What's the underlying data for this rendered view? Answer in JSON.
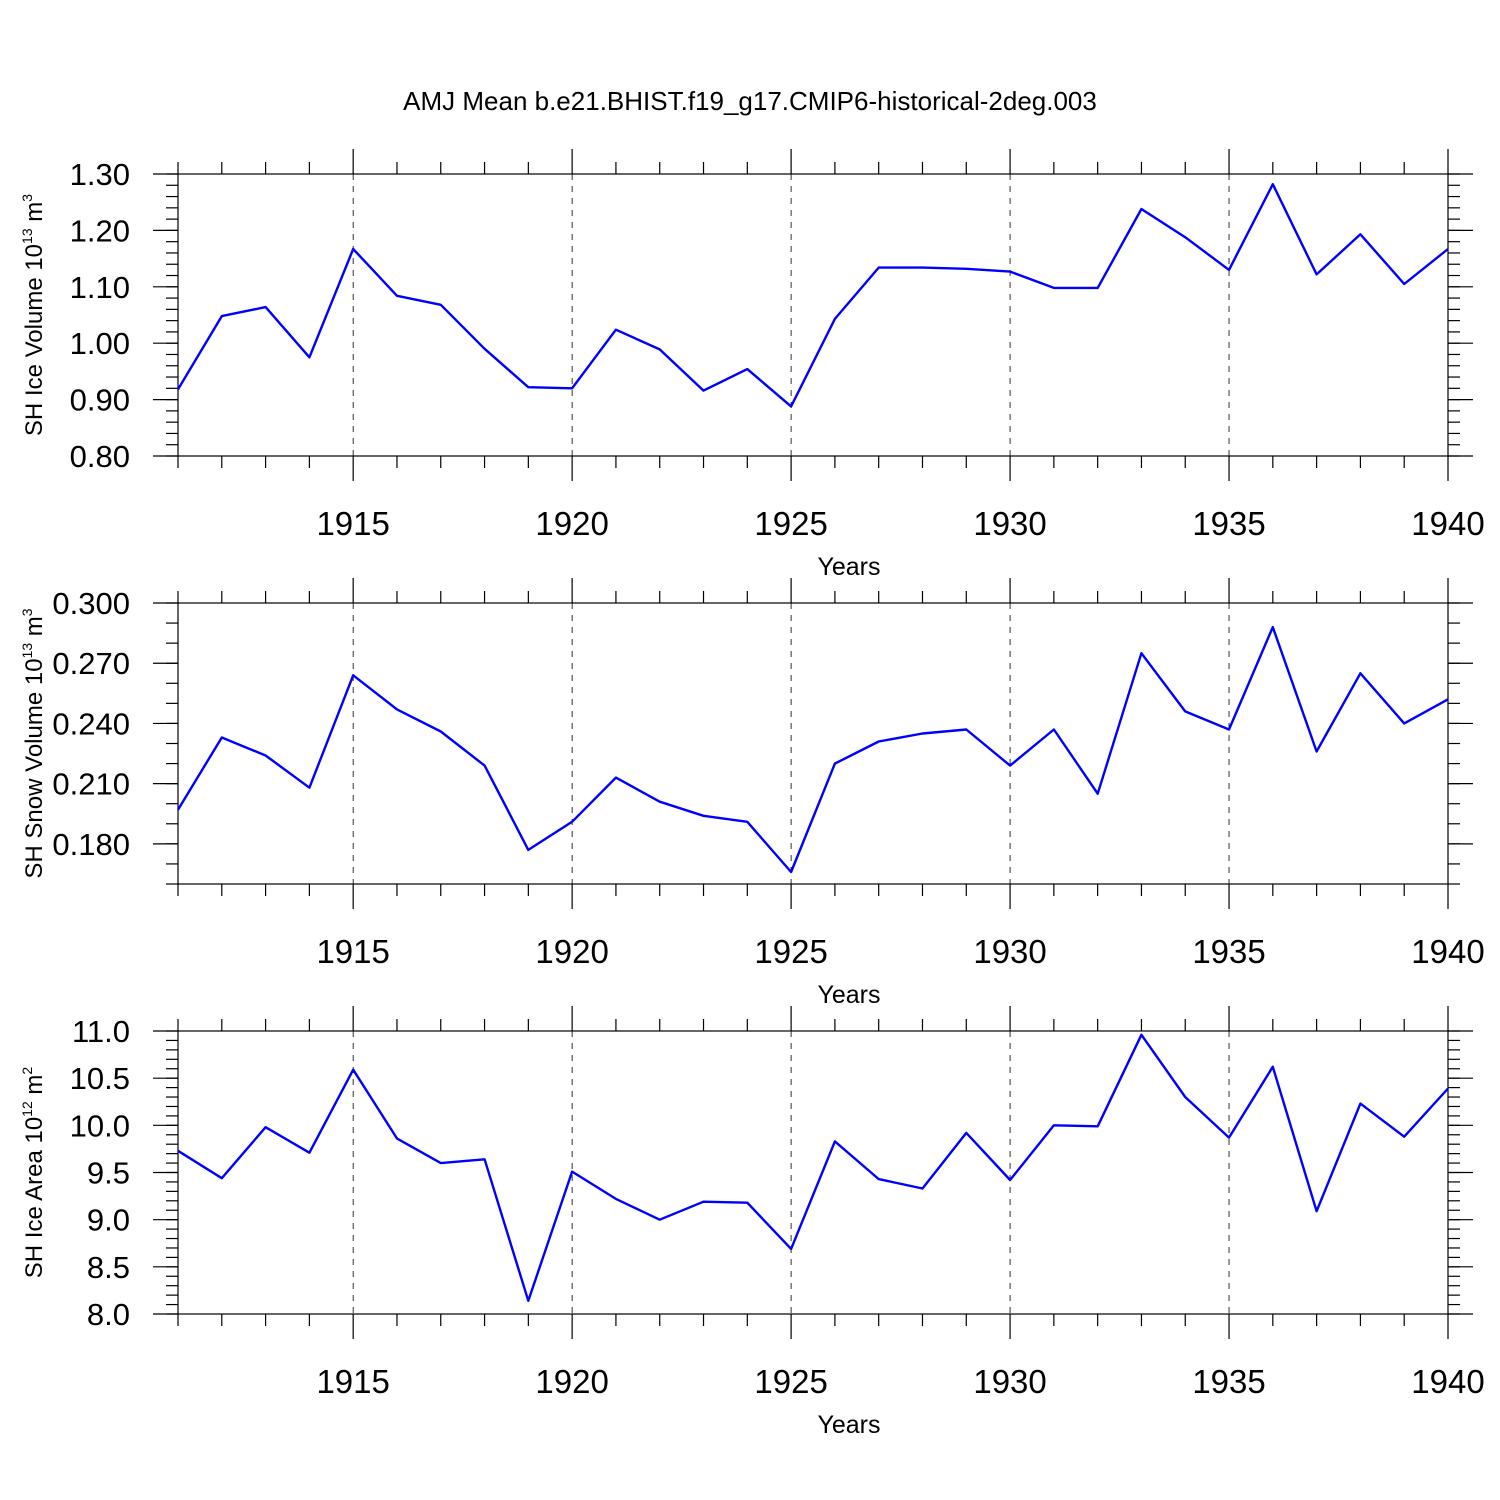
{
  "chart_data": [
    {
      "type": "line",
      "title": "AMJ Mean b.e21.BHIST.f19_g17.CMIP6-historical-2deg.003",
      "xlabel": "Years",
      "ylabel": "SH Ice Volume 10",
      "ylabel_exp": "13",
      "ylabel_unit": " m",
      "ylabel_unit_exp": "3",
      "xlim": [
        1911,
        1940
      ],
      "ylim": [
        0.8,
        1.3
      ],
      "x_ticks": [
        1915,
        1920,
        1925,
        1930,
        1935,
        1940
      ],
      "y_ticks": [
        "0.80",
        "0.90",
        "1.00",
        "1.10",
        "1.20",
        "1.30"
      ],
      "y_minor_step": 0.02,
      "grid": "x-dashed",
      "series": [
        {
          "name": "SH Ice Volume",
          "color": "#0000ff",
          "x": [
            1911,
            1912,
            1913,
            1914,
            1915,
            1916,
            1917,
            1918,
            1919,
            1920,
            1921,
            1922,
            1923,
            1924,
            1925,
            1926,
            1927,
            1928,
            1929,
            1930,
            1931,
            1932,
            1933,
            1934,
            1935,
            1936,
            1937,
            1938,
            1939,
            1940
          ],
          "values": [
            0.918,
            1.048,
            1.064,
            0.975,
            1.167,
            1.084,
            1.068,
            0.99,
            0.922,
            0.92,
            1.024,
            0.989,
            0.916,
            0.954,
            0.888,
            1.043,
            1.134,
            1.134,
            1.132,
            1.127,
            1.098,
            1.098,
            1.238,
            1.188,
            1.13,
            1.282,
            1.122,
            1.193,
            1.105,
            1.167
          ]
        }
      ]
    },
    {
      "type": "line",
      "xlabel": "Years",
      "ylabel": "SH Snow Volume 10",
      "ylabel_exp": "13",
      "ylabel_unit": " m",
      "ylabel_unit_exp": "3",
      "xlim": [
        1911,
        1940
      ],
      "ylim": [
        0.16,
        0.3
      ],
      "x_ticks": [
        1915,
        1920,
        1925,
        1930,
        1935,
        1940
      ],
      "y_ticks": [
        "0.180",
        "0.210",
        "0.240",
        "0.270",
        "0.300"
      ],
      "y_minor_step": 0.01,
      "grid": "x-dashed",
      "series": [
        {
          "name": "SH Snow Volume",
          "color": "#0000ff",
          "x": [
            1911,
            1912,
            1913,
            1914,
            1915,
            1916,
            1917,
            1918,
            1919,
            1920,
            1921,
            1922,
            1923,
            1924,
            1925,
            1926,
            1927,
            1928,
            1929,
            1930,
            1931,
            1932,
            1933,
            1934,
            1935,
            1936,
            1937,
            1938,
            1939,
            1940
          ],
          "values": [
            0.197,
            0.233,
            0.224,
            0.208,
            0.264,
            0.247,
            0.236,
            0.219,
            0.177,
            0.191,
            0.213,
            0.201,
            0.194,
            0.191,
            0.166,
            0.22,
            0.231,
            0.235,
            0.237,
            0.219,
            0.237,
            0.205,
            0.275,
            0.246,
            0.237,
            0.288,
            0.226,
            0.265,
            0.24,
            0.252
          ]
        }
      ]
    },
    {
      "type": "line",
      "xlabel": "Years",
      "ylabel": "SH Ice Area 10",
      "ylabel_exp": "12",
      "ylabel_unit": " m",
      "ylabel_unit_exp": "2",
      "xlim": [
        1911,
        1940
      ],
      "ylim": [
        8.0,
        11.0
      ],
      "x_ticks": [
        1915,
        1920,
        1925,
        1930,
        1935,
        1940
      ],
      "y_ticks": [
        "8.0",
        "8.5",
        "9.0",
        "9.5",
        "10.0",
        "10.5",
        "11.0"
      ],
      "y_minor_step": 0.1,
      "grid": "x-dashed",
      "series": [
        {
          "name": "SH Ice Area",
          "color": "#0000ff",
          "x": [
            1911,
            1912,
            1913,
            1914,
            1915,
            1916,
            1917,
            1918,
            1919,
            1920,
            1921,
            1922,
            1923,
            1924,
            1925,
            1926,
            1927,
            1928,
            1929,
            1930,
            1931,
            1932,
            1933,
            1934,
            1935,
            1936,
            1937,
            1938,
            1939,
            1940
          ],
          "values": [
            9.73,
            9.44,
            9.98,
            9.71,
            10.59,
            9.86,
            9.6,
            9.64,
            8.14,
            9.51,
            9.22,
            9.0,
            9.19,
            9.18,
            8.69,
            9.83,
            9.43,
            9.33,
            9.92,
            9.42,
            10.0,
            9.99,
            10.96,
            10.3,
            9.87,
            10.62,
            9.09,
            10.23,
            9.88,
            10.39
          ]
        }
      ]
    }
  ]
}
